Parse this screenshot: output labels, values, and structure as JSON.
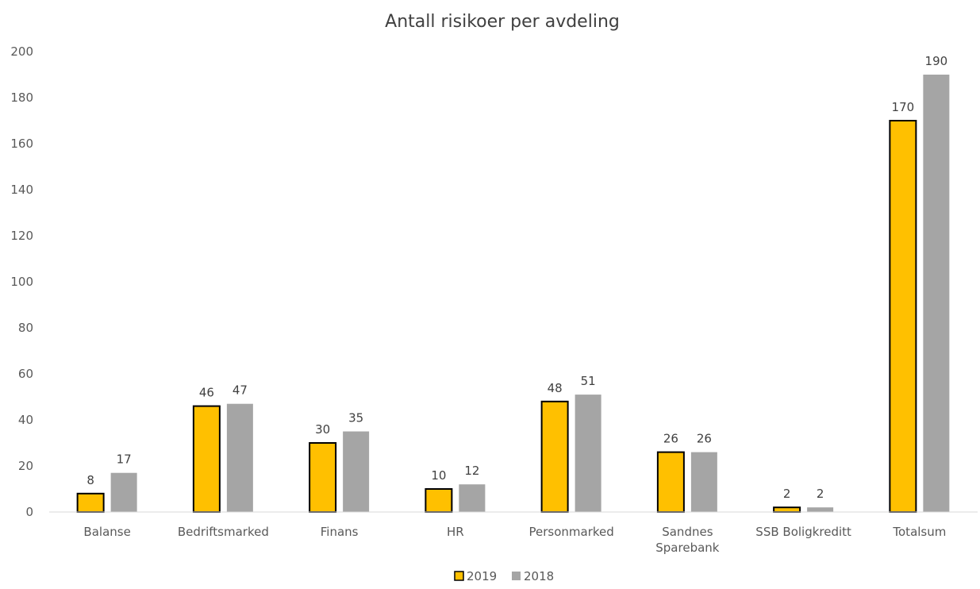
{
  "chart_data": {
    "type": "bar",
    "title": "Antall risikoer per avdeling",
    "xlabel": "",
    "ylabel": "",
    "ylim": [
      0,
      200
    ],
    "yticks": [
      0,
      20,
      40,
      60,
      80,
      100,
      120,
      140,
      160,
      180,
      200
    ],
    "categories": [
      [
        "Balanse"
      ],
      [
        "Bedriftsmarked"
      ],
      [
        "Finans"
      ],
      [
        "HR"
      ],
      [
        "Personmarked"
      ],
      [
        "Sandnes",
        "Sparebank"
      ],
      [
        "SSB Boligkreditt"
      ],
      [
        "Totalsum"
      ]
    ],
    "series": [
      {
        "name": "2019",
        "values": [
          8,
          46,
          30,
          10,
          48,
          26,
          2,
          170
        ],
        "color": "#FFC000",
        "stroke": "#000000"
      },
      {
        "name": "2018",
        "values": [
          17,
          47,
          35,
          12,
          51,
          26,
          2,
          190
        ],
        "color": "#A5A5A5",
        "stroke": "none"
      }
    ],
    "grid": false,
    "data_labels": true,
    "legend_position": "bottom"
  }
}
